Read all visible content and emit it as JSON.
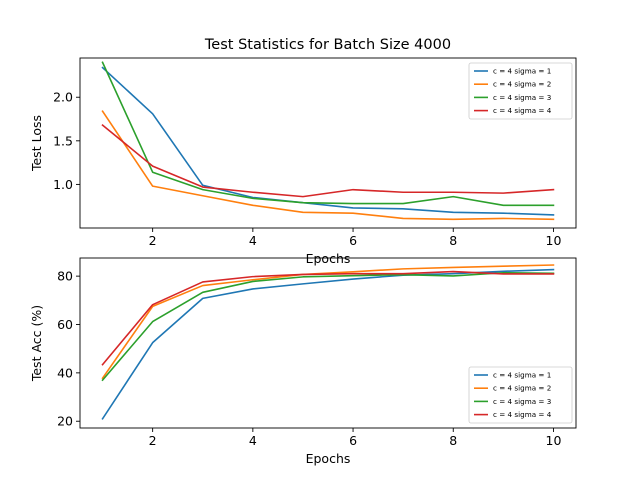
{
  "title": "Test Statistics for Batch Size 4000",
  "colors": {
    "c = 4 sigma = 1": "#1f77b4",
    "c = 4 sigma = 2": "#ff7f0e",
    "c = 4 sigma = 3": "#2ca02c",
    "c = 4 sigma = 4": "#d62728"
  },
  "chart_data": [
    {
      "type": "line",
      "title": "Test Statistics for Batch Size 4000",
      "xlabel": "Epochs",
      "ylabel": "Test Loss",
      "x": [
        1,
        2,
        3,
        4,
        5,
        6,
        7,
        8,
        9,
        10
      ],
      "xlim": [
        0.55,
        10.45
      ],
      "ylim": [
        0.5,
        2.45
      ],
      "xticks": [
        2,
        4,
        6,
        8,
        10
      ],
      "yticks": [
        1.0,
        1.5,
        2.0
      ],
      "ytick_labels": [
        "1.0",
        "1.5",
        "2.0"
      ],
      "grid": false,
      "legend_position": "top-right",
      "series": [
        {
          "name": "c = 4 sigma = 1",
          "values": [
            2.34,
            1.81,
            0.99,
            0.85,
            0.79,
            0.73,
            0.72,
            0.68,
            0.67,
            0.65
          ]
        },
        {
          "name": "c = 4 sigma = 2",
          "values": [
            1.84,
            0.98,
            0.87,
            0.76,
            0.68,
            0.67,
            0.61,
            0.6,
            0.61,
            0.6
          ]
        },
        {
          "name": "c = 4 sigma = 3",
          "values": [
            2.4,
            1.14,
            0.94,
            0.84,
            0.79,
            0.78,
            0.78,
            0.86,
            0.76,
            0.76
          ]
        },
        {
          "name": "c = 4 sigma = 4",
          "values": [
            1.68,
            1.21,
            0.97,
            0.91,
            0.86,
            0.94,
            0.91,
            0.91,
            0.9,
            0.94
          ]
        }
      ]
    },
    {
      "type": "line",
      "title": "",
      "xlabel": "Epochs",
      "ylabel": "Test Acc (%)",
      "x": [
        1,
        2,
        3,
        4,
        5,
        6,
        7,
        8,
        9,
        10
      ],
      "xlim": [
        0.55,
        10.45
      ],
      "ylim": [
        17.2,
        87.5
      ],
      "xticks": [
        2,
        4,
        6,
        8,
        10
      ],
      "yticks": [
        20,
        40,
        60,
        80
      ],
      "ytick_labels": [
        "20",
        "40",
        "60",
        "80"
      ],
      "grid": false,
      "legend_position": "bottom-right",
      "series": [
        {
          "name": "c = 4 sigma = 1",
          "values": [
            21.0,
            52.5,
            70.8,
            74.7,
            76.8,
            78.8,
            80.4,
            81.0,
            82.0,
            82.7
          ]
        },
        {
          "name": "c = 4 sigma = 2",
          "values": [
            37.8,
            67.5,
            76.1,
            78.5,
            80.7,
            81.8,
            83.0,
            83.6,
            84.1,
            84.6
          ]
        },
        {
          "name": "c = 4 sigma = 3",
          "values": [
            37.0,
            61.2,
            73.3,
            77.8,
            79.7,
            80.2,
            80.6,
            80.1,
            81.4,
            81.2
          ]
        },
        {
          "name": "c = 4 sigma = 4",
          "values": [
            43.4,
            68.2,
            77.6,
            79.8,
            80.7,
            81.0,
            81.0,
            81.9,
            80.9,
            80.9
          ]
        }
      ]
    }
  ]
}
